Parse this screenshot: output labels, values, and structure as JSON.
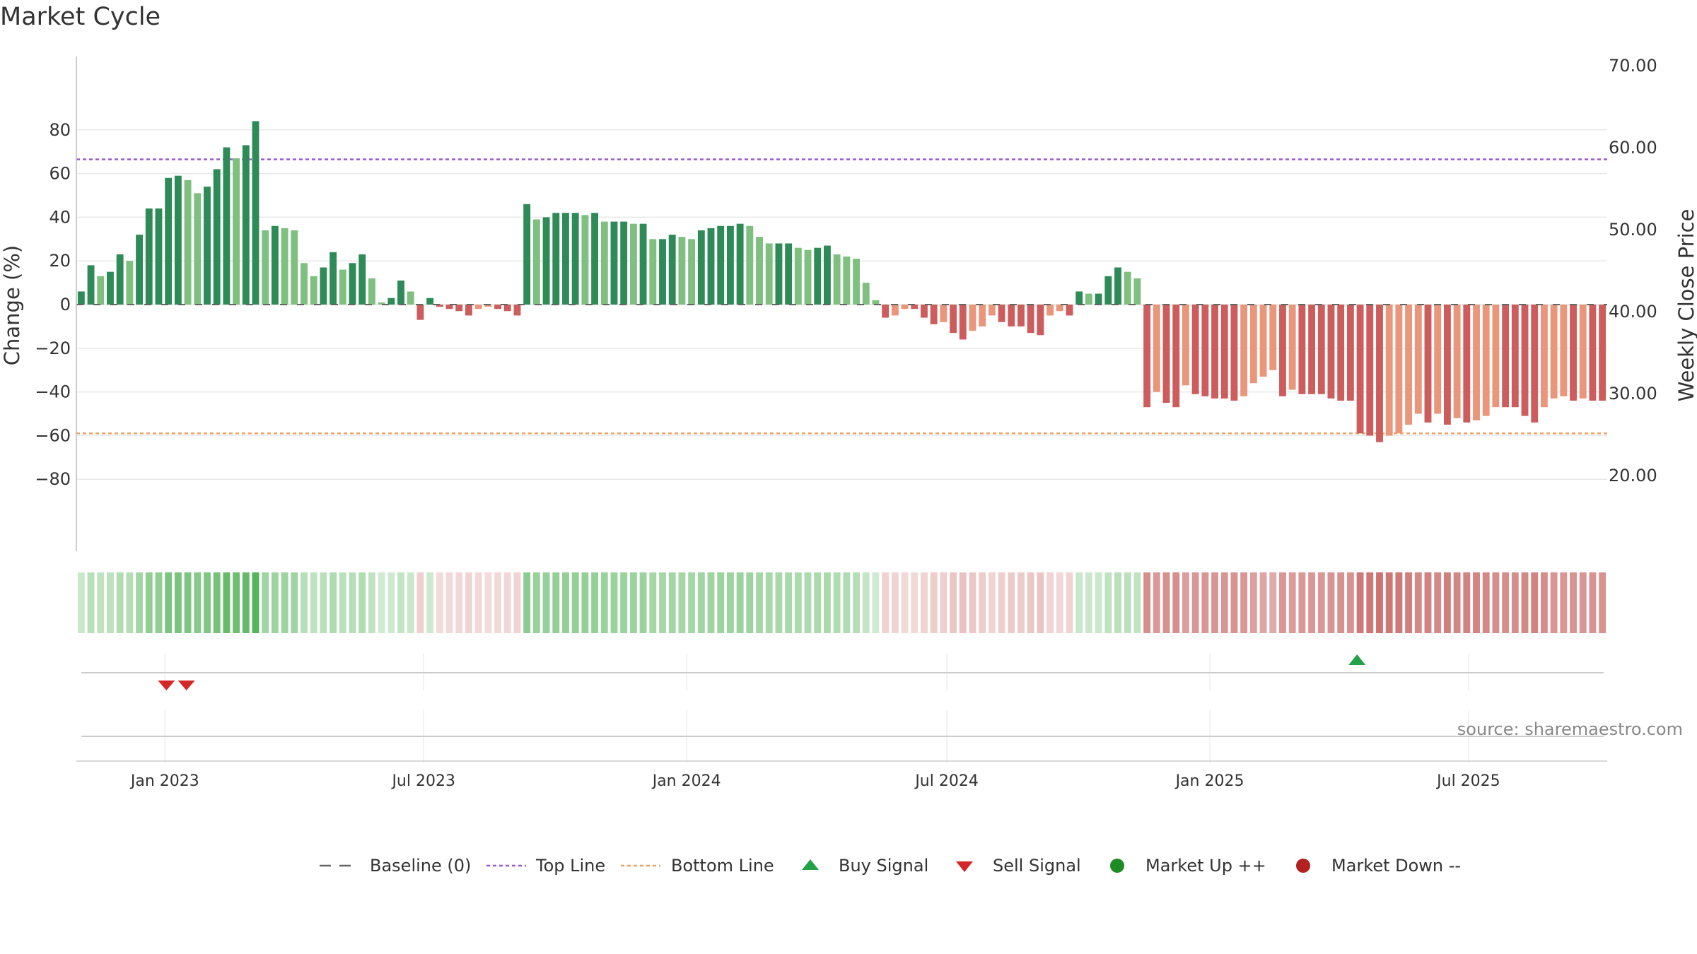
{
  "chart_data": {
    "type": "bar",
    "title": "Market Cycle",
    "ylabel": "Change (%)",
    "y2label": "Weekly Close Price",
    "ylim": [
      -90,
      90
    ],
    "y2lim": [
      13,
      73
    ],
    "yticks": [
      "80",
      "60",
      "40",
      "20",
      "0",
      "−20",
      "−40",
      "−60",
      "−80"
    ],
    "y2ticks": [
      "70.00",
      "60.00",
      "50.00",
      "40.00",
      "30.00",
      "20.00"
    ],
    "top_line": 66.5,
    "bottom_line": -59,
    "x_start": "2022-10-31",
    "x_end": "2025-10-06",
    "xticks": [
      "Jan 2023",
      "Jul 2023",
      "Jan 2024",
      "Jul 2024",
      "Jan 2025",
      "Jul 2025"
    ],
    "grid": true,
    "legend_position": "bottom",
    "values": [
      6,
      18,
      13,
      15,
      23,
      20,
      32,
      44,
      44,
      58,
      59,
      57,
      51,
      54,
      62,
      72,
      67,
      73,
      84,
      34,
      36,
      35,
      34,
      19,
      13,
      17,
      24,
      16,
      19,
      23,
      12,
      1,
      3,
      11,
      6,
      -7,
      3,
      -1,
      -2,
      -3,
      -5,
      -2,
      -1,
      -2,
      -3,
      -5,
      46,
      39,
      40,
      42,
      42,
      42,
      41,
      42,
      38,
      38,
      38,
      37,
      37,
      30,
      30,
      32,
      31,
      30,
      34,
      35,
      36,
      36,
      37,
      36,
      31,
      28,
      28,
      28,
      26,
      25,
      26,
      27,
      23,
      22,
      21,
      10,
      2,
      -6,
      -5,
      -2,
      -2,
      -6,
      -9,
      -8,
      -13,
      -16,
      -12,
      -10,
      -5,
      -8,
      -10,
      -10,
      -13,
      -14,
      -5,
      -3,
      -5,
      6,
      5,
      5,
      13,
      17,
      15,
      12,
      -47,
      -40,
      -45,
      -47,
      -37,
      -41,
      -42,
      -43,
      -43,
      -44,
      -42,
      -36,
      -33,
      -30,
      -42,
      -39,
      -41,
      -41,
      -41,
      -43,
      -44,
      -44,
      -59,
      -60,
      -63,
      -60,
      -59,
      -55,
      -50,
      -54,
      -50,
      -55,
      -52,
      -54,
      -53,
      -51,
      -47,
      -47,
      -47,
      -51,
      -54,
      -47,
      -43,
      -42,
      -44,
      -43,
      -44,
      -44
    ],
    "signals": [
      {
        "type": "sell",
        "date": "2023-01-02"
      },
      {
        "type": "sell",
        "date": "2023-01-16"
      },
      {
        "type": "buy",
        "date": "2025-04-14"
      }
    ],
    "legend": [
      "Baseline (0)",
      "Top Line",
      "Bottom Line",
      "Buy Signal",
      "Sell Signal",
      "Market Up ++",
      "Market Down --"
    ]
  },
  "colors": {
    "up_strong": "#2e8b57",
    "up_light": "#7fbf7f",
    "down_strong": "#cd5c5c",
    "down_light": "#e9967a",
    "top_line": "#9b59d0",
    "bottom_line": "#f0a060",
    "buy": "#22a34a",
    "sell": "#d62728",
    "market_up": "#1f8b24",
    "market_down": "#b22222"
  },
  "source": "source: sharemaestro.com"
}
